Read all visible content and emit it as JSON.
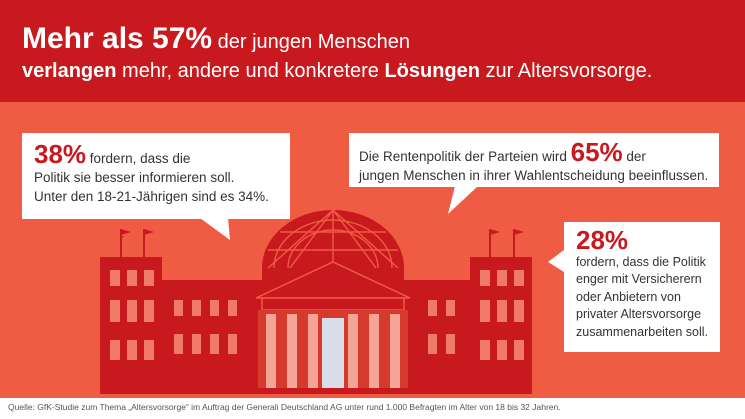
{
  "header": {
    "line1_bold": "Mehr als 57%",
    "line1_rest": " der jungen Menschen",
    "line2_bold1": "verlangen",
    "line2_mid": " mehr, andere und konkretere ",
    "line2_bold2": "Lösungen",
    "line2_end": " zur Altersvorsorge."
  },
  "bubble_left": {
    "percent": "38%",
    "text1": " fordern, dass die",
    "text2": "Politik sie besser informieren soll.",
    "text3": "Unter den 18-21-Jährigen sind es 34%."
  },
  "bubble_right": {
    "text1": "Die Rentenpolitik der Parteien wird ",
    "percent": "65%",
    "text2": " der",
    "text3": "jungen Menschen in ihrer Wahlentscheidung beeinflussen."
  },
  "bubble_side": {
    "percent": "28%",
    "lines": [
      "fordern, dass die Politik",
      "enger mit Versicherern",
      "oder Anbietern von",
      "privater Altersvorsorge",
      "zusammenarbeiten soll."
    ]
  },
  "footer": {
    "source": "Quelle: GfK-Studie zum Thema „Altersvorsorge“ im Auftrag der Generali Deutschland AG unter rund 1.000 Befragten im Alter von 18 bis 32 Jahren."
  },
  "colors": {
    "dark_red": "#c8191e",
    "orange_red": "#ef5b43",
    "window": "#f07a68"
  }
}
